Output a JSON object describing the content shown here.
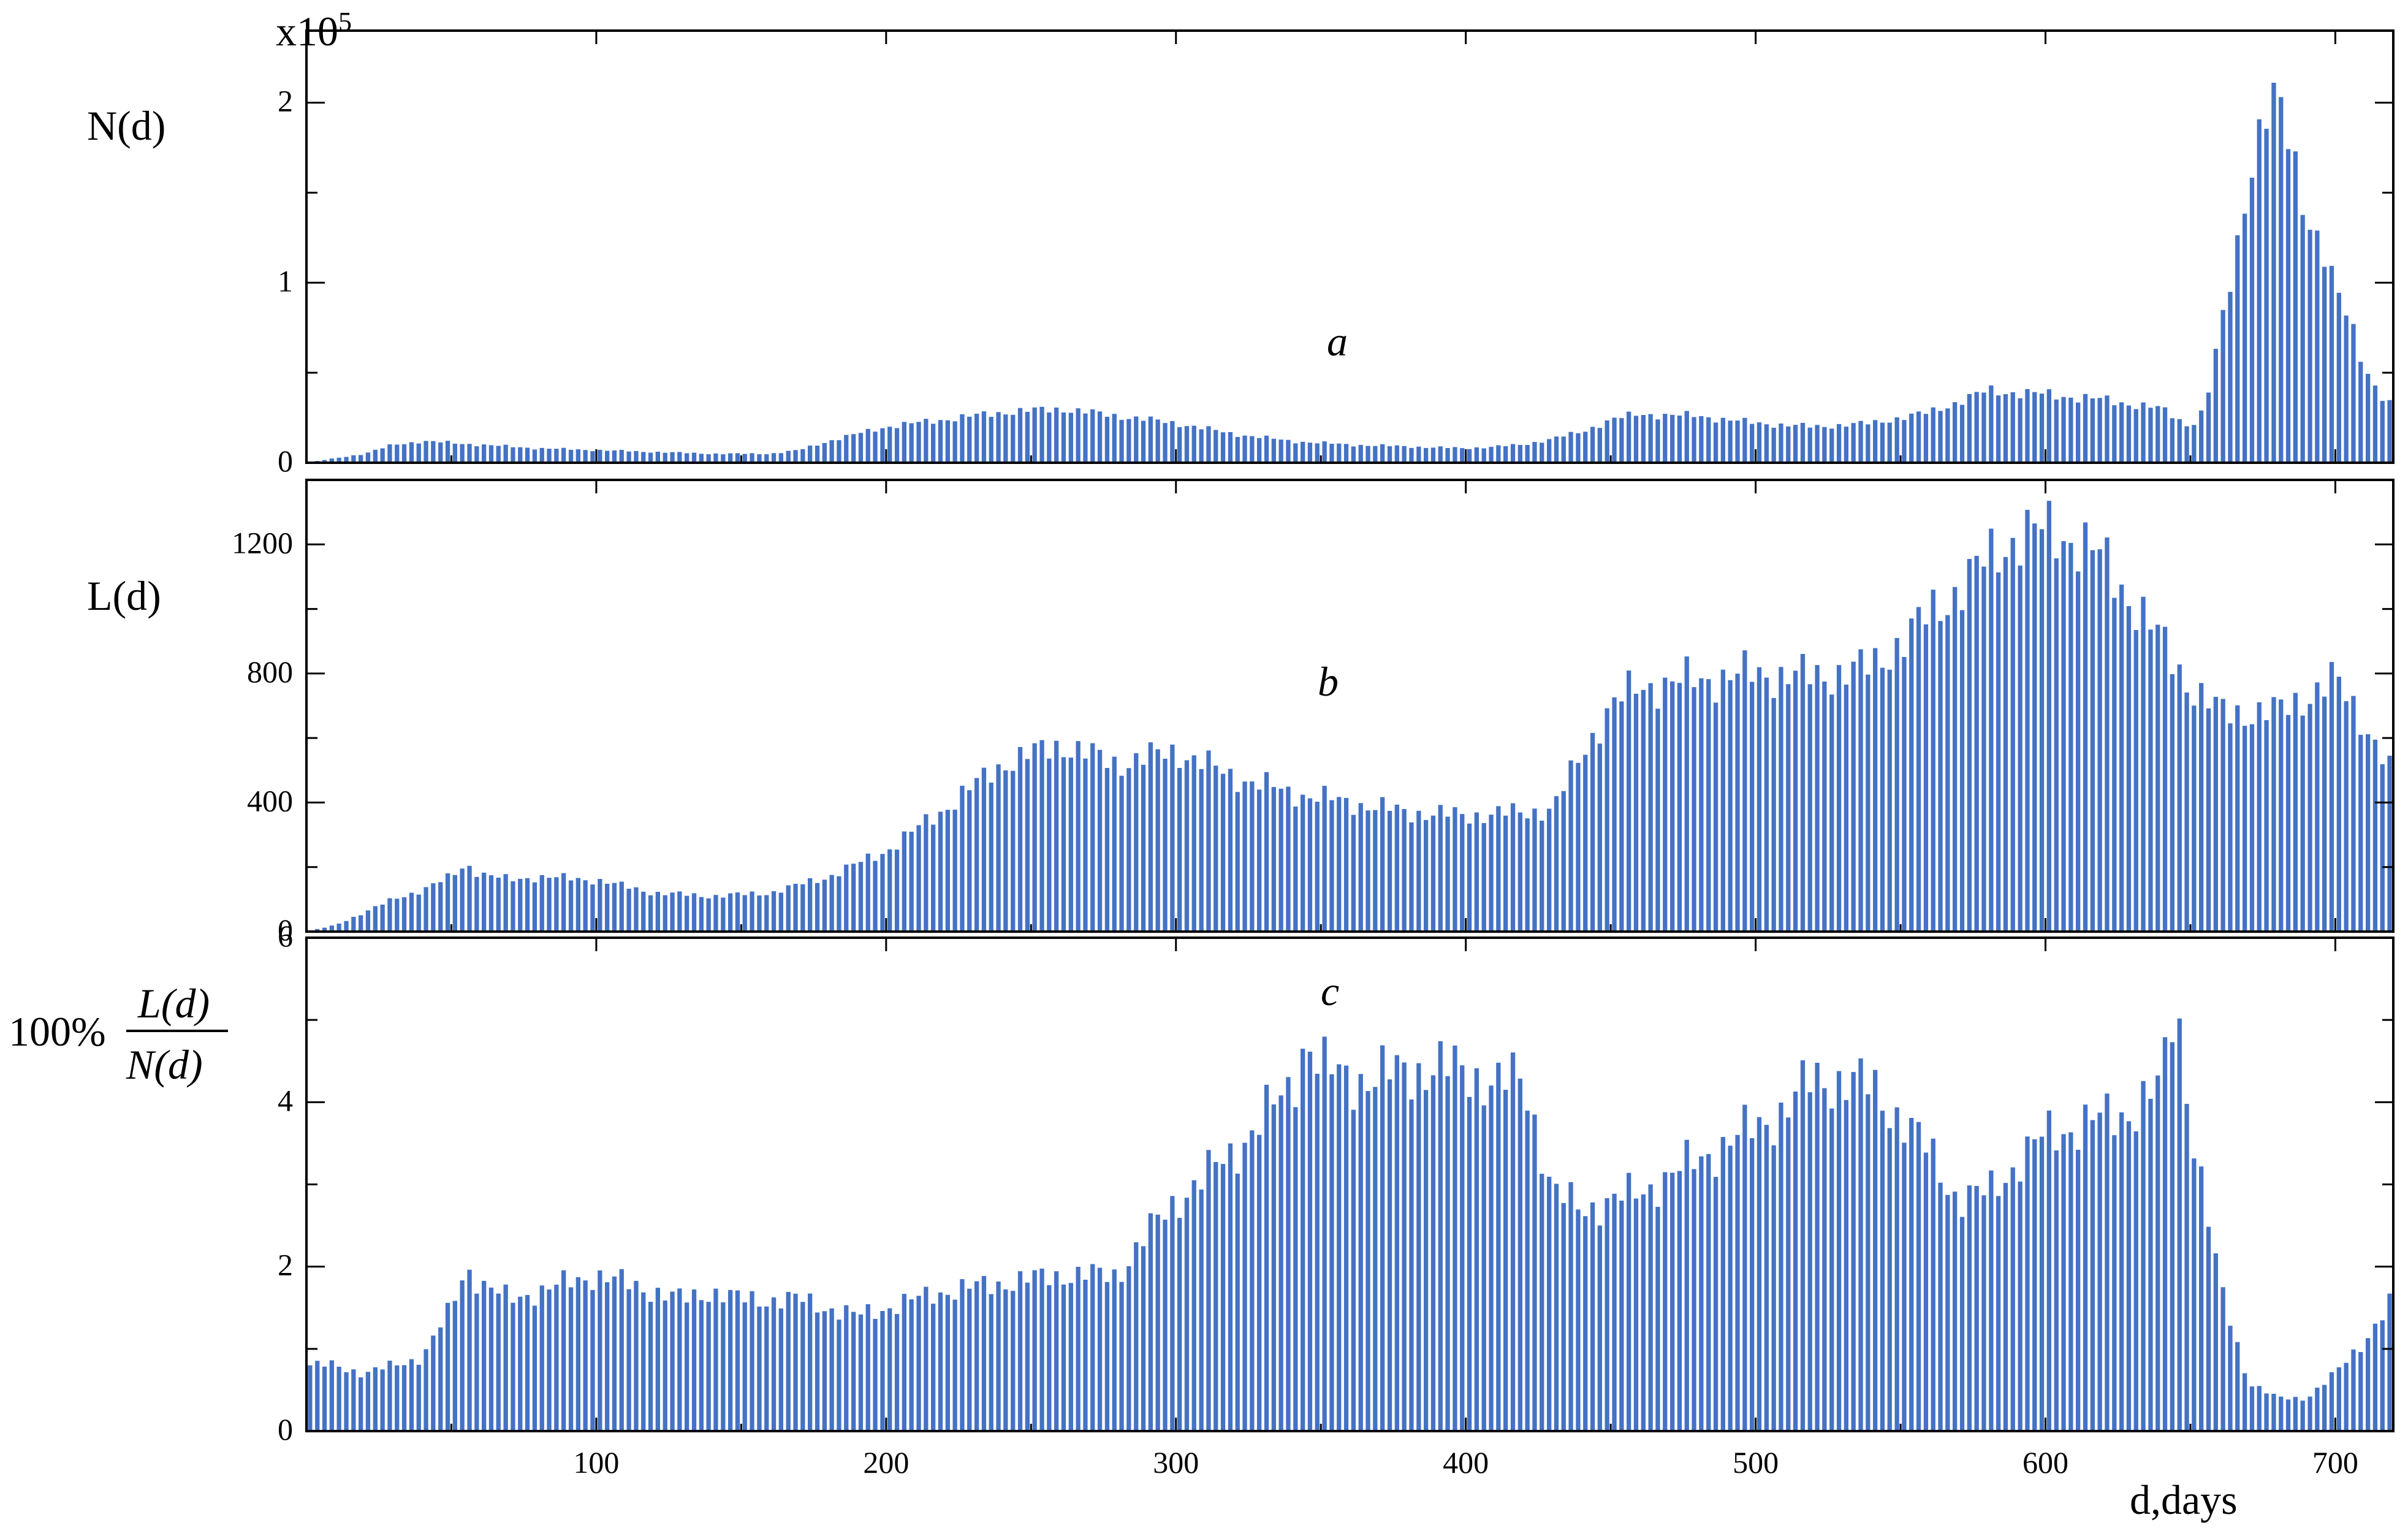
{
  "colors": {
    "bar": "#4472c4",
    "axis": "#000000",
    "background": "#ffffff"
  },
  "chart_data": [
    {
      "type": "bar",
      "panel": "a",
      "ylabel": "N(d)",
      "multiplier_label": "x10",
      "multiplier_exponent": "5",
      "xlim": [
        0,
        720
      ],
      "ylim": [
        0,
        2.4
      ],
      "yticks": [
        0,
        1,
        2
      ],
      "ytick_labels": [
        "0",
        "1",
        "2"
      ],
      "grid": false,
      "series": [
        {
          "x": [
            0,
            20,
            30,
            40,
            60,
            80,
            100,
            120,
            140,
            160,
            170,
            180,
            190,
            200,
            220,
            240,
            260,
            280,
            300,
            320,
            340,
            360,
            380,
            400,
            420,
            440,
            450,
            460,
            480,
            500,
            520,
            540,
            560,
            580,
            600,
            620,
            640,
            650,
            655,
            660,
            665,
            670,
            675,
            680,
            685,
            690,
            695,
            700,
            705,
            710,
            715,
            720
          ],
          "y": [
            0,
            0.05,
            0.1,
            0.12,
            0.1,
            0.08,
            0.07,
            0.06,
            0.05,
            0.05,
            0.07,
            0.12,
            0.16,
            0.2,
            0.24,
            0.28,
            0.3,
            0.26,
            0.22,
            0.16,
            0.12,
            0.1,
            0.09,
            0.08,
            0.1,
            0.17,
            0.24,
            0.27,
            0.26,
            0.22,
            0.2,
            0.22,
            0.28,
            0.4,
            0.38,
            0.35,
            0.3,
            0.2,
            0.3,
            0.7,
            1.1,
            1.6,
            1.9,
            2.0,
            1.75,
            1.4,
            1.2,
            0.95,
            0.8,
            0.55,
            0.38,
            0.3
          ]
        }
      ]
    },
    {
      "type": "bar",
      "panel": "b",
      "ylabel": "L(d)",
      "xlim": [
        0,
        720
      ],
      "ylim": [
        0,
        1400
      ],
      "yticks": [
        0,
        400,
        800,
        1200
      ],
      "ytick_labels": [
        "0",
        "400",
        "800",
        "1200"
      ],
      "grid": false,
      "series": [
        {
          "x": [
            0,
            10,
            20,
            30,
            40,
            50,
            55,
            60,
            70,
            80,
            100,
            120,
            140,
            160,
            180,
            200,
            220,
            240,
            260,
            280,
            300,
            320,
            340,
            360,
            380,
            400,
            420,
            430,
            440,
            450,
            460,
            480,
            500,
            520,
            540,
            560,
            580,
            590,
            600,
            610,
            620,
            640,
            650,
            660,
            680,
            700,
            710,
            720
          ],
          "y": [
            0,
            20,
            60,
            100,
            130,
            170,
            210,
            180,
            160,
            170,
            160,
            120,
            110,
            120,
            170,
            250,
            380,
            520,
            580,
            520,
            560,
            480,
            430,
            400,
            370,
            360,
            370,
            380,
            550,
            700,
            760,
            780,
            800,
            790,
            820,
            980,
            1150,
            1230,
            1240,
            1220,
            1150,
            900,
            760,
            680,
            680,
            780,
            650,
            480
          ]
        }
      ]
    },
    {
      "type": "bar",
      "panel": "c",
      "ylabel_numerator": "L(d)",
      "ylabel_denominator": "N(d)",
      "ylabel_prefix": "100%",
      "xlabel": "d,days",
      "xlim": [
        0,
        720
      ],
      "ylim": [
        0,
        6
      ],
      "xticks": [
        100,
        200,
        300,
        400,
        500,
        600,
        700
      ],
      "xtick_labels": [
        "100",
        "200",
        "300",
        "400",
        "500",
        "600",
        "700"
      ],
      "yticks": [
        0,
        2,
        4,
        6
      ],
      "ytick_labels": [
        "0",
        "2",
        "4",
        "6"
      ],
      "grid": false,
      "series": [
        {
          "x": [
            0,
            10,
            20,
            30,
            40,
            50,
            55,
            60,
            70,
            80,
            90,
            100,
            110,
            120,
            130,
            140,
            150,
            160,
            170,
            180,
            190,
            200,
            220,
            240,
            260,
            280,
            290,
            300,
            320,
            340,
            345,
            350,
            360,
            370,
            380,
            400,
            410,
            420,
            430,
            440,
            460,
            480,
            500,
            510,
            520,
            540,
            560,
            570,
            580,
            600,
            620,
            630,
            640,
            645,
            650,
            660,
            670,
            680,
            690,
            700,
            710,
            720
          ],
          "y": [
            0.8,
            0.8,
            0.7,
            0.8,
            0.9,
            1.5,
            2.0,
            1.8,
            1.6,
            1.7,
            1.8,
            1.9,
            1.8,
            1.7,
            1.6,
            1.7,
            1.6,
            1.6,
            1.6,
            1.5,
            1.4,
            1.5,
            1.7,
            1.8,
            1.9,
            1.9,
            2.4,
            2.8,
            3.4,
            4.2,
            4.8,
            4.4,
            4.3,
            4.3,
            4.4,
            4.4,
            4.2,
            4.3,
            2.9,
            2.7,
            2.9,
            3.3,
            3.7,
            3.9,
            4.3,
            4.2,
            3.4,
            2.8,
            2.9,
            3.6,
            3.8,
            3.9,
            4.2,
            5.3,
            3.8,
            1.8,
            0.6,
            0.4,
            0.4,
            0.7,
            1.1,
            1.6
          ]
        }
      ]
    }
  ]
}
